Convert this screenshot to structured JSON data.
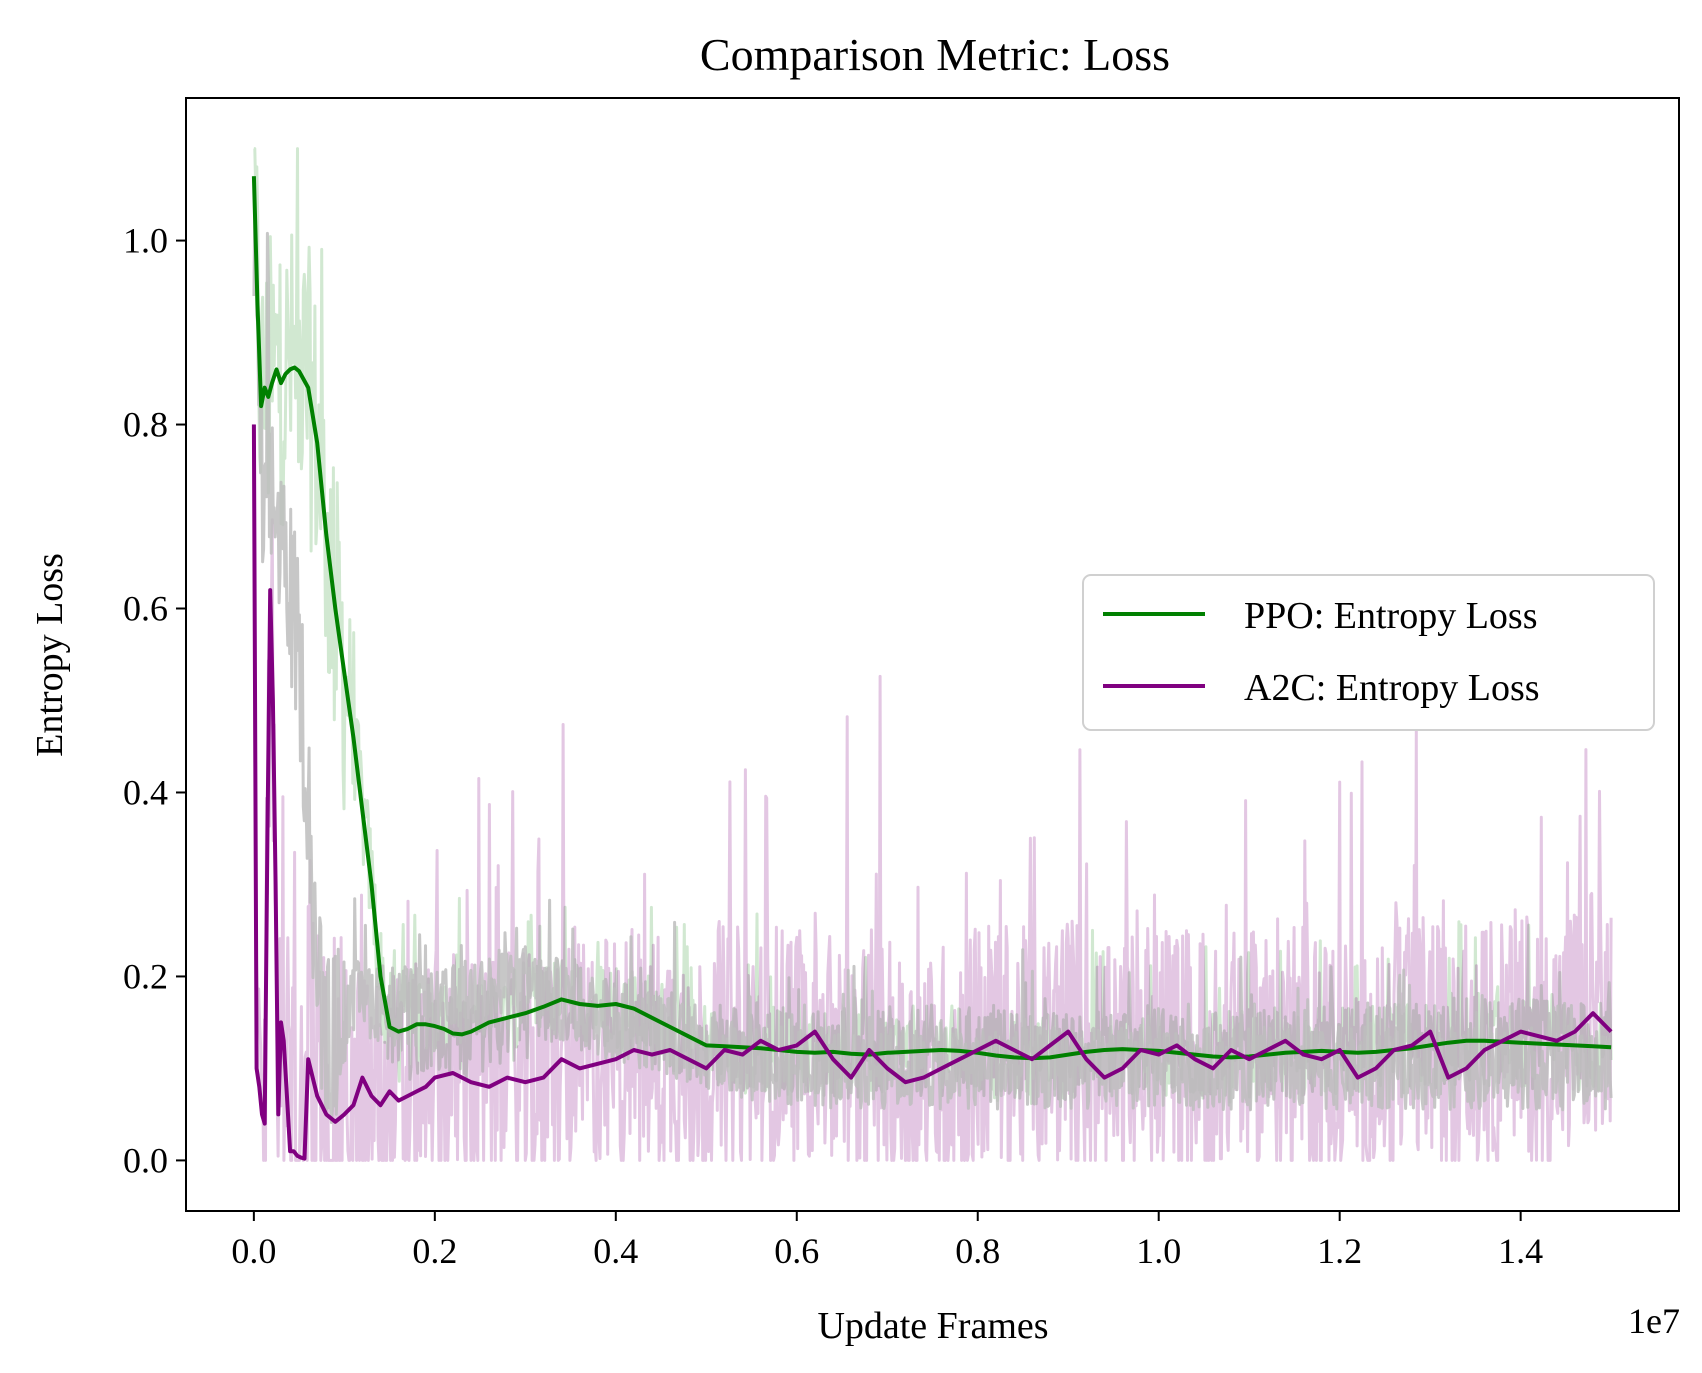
{
  "chart_data": {
    "type": "line",
    "title": "Comparison Metric: Loss",
    "xlabel": "Update Frames",
    "ylabel": "Entropy Loss",
    "x_offset_label": "1e7",
    "xlim": [
      -0.075,
      1.575
    ],
    "ylim": [
      -0.055,
      1.155
    ],
    "x_ticks": [
      0.0,
      0.2,
      0.4,
      0.6,
      0.8,
      1.0,
      1.2,
      1.4
    ],
    "x_tick_labels": [
      "0.0",
      "0.2",
      "0.4",
      "0.6",
      "0.8",
      "1.0",
      "1.2",
      "1.4"
    ],
    "y_ticks": [
      0.0,
      0.2,
      0.4,
      0.6,
      0.8,
      1.0
    ],
    "y_tick_labels": [
      "0.0",
      "0.2",
      "0.4",
      "0.6",
      "0.8",
      "1.0"
    ],
    "grid": false,
    "legend_position": "center-right",
    "series": [
      {
        "name": "PPO: Entropy Loss",
        "color": "#008000",
        "x": [
          0.0,
          0.004,
          0.008,
          0.012,
          0.016,
          0.02,
          0.025,
          0.03,
          0.035,
          0.04,
          0.045,
          0.05,
          0.06,
          0.07,
          0.08,
          0.09,
          0.1,
          0.11,
          0.12,
          0.13,
          0.14,
          0.15,
          0.16,
          0.17,
          0.18,
          0.19,
          0.2,
          0.21,
          0.22,
          0.23,
          0.24,
          0.25,
          0.26,
          0.28,
          0.3,
          0.32,
          0.34,
          0.36,
          0.38,
          0.4,
          0.42,
          0.44,
          0.46,
          0.48,
          0.5,
          0.52,
          0.54,
          0.56,
          0.58,
          0.6,
          0.62,
          0.64,
          0.66,
          0.68,
          0.7,
          0.72,
          0.74,
          0.76,
          0.78,
          0.8,
          0.82,
          0.84,
          0.86,
          0.88,
          0.9,
          0.92,
          0.94,
          0.96,
          0.98,
          1.0,
          1.02,
          1.04,
          1.06,
          1.08,
          1.1,
          1.12,
          1.14,
          1.16,
          1.18,
          1.2,
          1.22,
          1.24,
          1.26,
          1.28,
          1.3,
          1.32,
          1.34,
          1.36,
          1.38,
          1.4,
          1.42,
          1.44,
          1.46,
          1.48,
          1.5
        ],
        "y": [
          1.07,
          0.93,
          0.82,
          0.84,
          0.83,
          0.845,
          0.86,
          0.845,
          0.855,
          0.86,
          0.862,
          0.858,
          0.84,
          0.78,
          0.68,
          0.6,
          0.53,
          0.46,
          0.38,
          0.3,
          0.2,
          0.145,
          0.14,
          0.143,
          0.148,
          0.148,
          0.146,
          0.143,
          0.138,
          0.137,
          0.14,
          0.145,
          0.15,
          0.155,
          0.16,
          0.167,
          0.175,
          0.17,
          0.168,
          0.17,
          0.165,
          0.155,
          0.145,
          0.135,
          0.125,
          0.124,
          0.123,
          0.122,
          0.12,
          0.118,
          0.117,
          0.118,
          0.116,
          0.115,
          0.117,
          0.118,
          0.119,
          0.12,
          0.119,
          0.117,
          0.114,
          0.112,
          0.111,
          0.112,
          0.115,
          0.118,
          0.12,
          0.121,
          0.12,
          0.119,
          0.117,
          0.115,
          0.113,
          0.112,
          0.113,
          0.115,
          0.117,
          0.118,
          0.119,
          0.118,
          0.117,
          0.118,
          0.12,
          0.122,
          0.125,
          0.128,
          0.13,
          0.13,
          0.129,
          0.128,
          0.127,
          0.126,
          0.125,
          0.124,
          0.123
        ]
      },
      {
        "name": "A2C: Entropy Loss",
        "color": "#800080",
        "x": [
          0.0,
          0.003,
          0.006,
          0.009,
          0.012,
          0.015,
          0.018,
          0.021,
          0.024,
          0.027,
          0.03,
          0.033,
          0.036,
          0.04,
          0.044,
          0.048,
          0.052,
          0.056,
          0.06,
          0.065,
          0.07,
          0.08,
          0.09,
          0.1,
          0.11,
          0.12,
          0.13,
          0.14,
          0.15,
          0.16,
          0.17,
          0.18,
          0.19,
          0.2,
          0.22,
          0.24,
          0.26,
          0.28,
          0.3,
          0.32,
          0.34,
          0.36,
          0.38,
          0.4,
          0.42,
          0.44,
          0.46,
          0.48,
          0.5,
          0.52,
          0.54,
          0.56,
          0.58,
          0.6,
          0.62,
          0.64,
          0.66,
          0.68,
          0.7,
          0.72,
          0.74,
          0.76,
          0.78,
          0.8,
          0.82,
          0.84,
          0.86,
          0.88,
          0.9,
          0.92,
          0.94,
          0.96,
          0.98,
          1.0,
          1.02,
          1.04,
          1.06,
          1.08,
          1.1,
          1.12,
          1.14,
          1.16,
          1.18,
          1.2,
          1.22,
          1.24,
          1.26,
          1.28,
          1.3,
          1.32,
          1.34,
          1.36,
          1.38,
          1.4,
          1.42,
          1.44,
          1.46,
          1.48,
          1.5
        ],
        "y": [
          0.8,
          0.1,
          0.08,
          0.05,
          0.04,
          0.35,
          0.62,
          0.5,
          0.3,
          0.05,
          0.15,
          0.13,
          0.08,
          0.01,
          0.01,
          0.005,
          0.003,
          0.002,
          0.11,
          0.09,
          0.07,
          0.05,
          0.042,
          0.05,
          0.06,
          0.09,
          0.07,
          0.06,
          0.075,
          0.065,
          0.07,
          0.075,
          0.08,
          0.09,
          0.095,
          0.085,
          0.08,
          0.09,
          0.085,
          0.09,
          0.11,
          0.1,
          0.105,
          0.11,
          0.12,
          0.115,
          0.12,
          0.11,
          0.1,
          0.12,
          0.115,
          0.13,
          0.12,
          0.125,
          0.14,
          0.11,
          0.09,
          0.12,
          0.1,
          0.085,
          0.09,
          0.1,
          0.11,
          0.12,
          0.13,
          0.12,
          0.11,
          0.125,
          0.14,
          0.11,
          0.09,
          0.1,
          0.12,
          0.115,
          0.125,
          0.11,
          0.1,
          0.12,
          0.11,
          0.12,
          0.13,
          0.115,
          0.11,
          0.12,
          0.09,
          0.1,
          0.12,
          0.125,
          0.14,
          0.09,
          0.1,
          0.12,
          0.13,
          0.14,
          0.135,
          0.13,
          0.14,
          0.16,
          0.14
        ]
      },
      {
        "name": "",
        "color": "#bdbdbd",
        "x": [
          0.0,
          0.005,
          0.01,
          0.02,
          0.03,
          0.04,
          0.05,
          0.06,
          0.07,
          0.08,
          0.1,
          0.12,
          0.15,
          0.2,
          0.25,
          0.3,
          0.35,
          0.4,
          0.45,
          0.5,
          0.55,
          0.6,
          0.65,
          0.7,
          0.75,
          0.8,
          0.85,
          0.9,
          0.95,
          1.0,
          1.05,
          1.1,
          1.15,
          1.2,
          1.25,
          1.3,
          1.35,
          1.4,
          1.45,
          1.5
        ],
        "y": [
          0.98,
          0.85,
          0.7,
          0.72,
          0.68,
          0.62,
          0.55,
          0.4,
          0.2,
          0.12,
          0.15,
          0.18,
          0.17,
          0.16,
          0.18,
          0.19,
          0.17,
          0.15,
          0.14,
          0.12,
          0.11,
          0.1,
          0.1,
          0.1,
          0.1,
          0.1,
          0.1,
          0.1,
          0.1,
          0.1,
          0.1,
          0.1,
          0.1,
          0.1,
          0.1,
          0.1,
          0.1,
          0.1,
          0.1,
          0.1
        ]
      }
    ]
  }
}
